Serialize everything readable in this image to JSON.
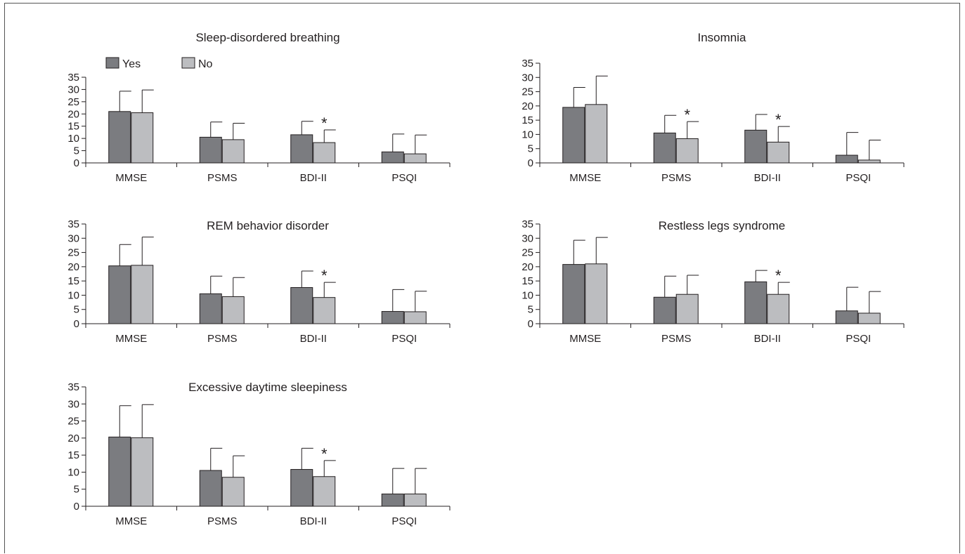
{
  "colors": {
    "yes": "#7b7c80",
    "no": "#bcbdc0",
    "ink": "#231f20"
  },
  "legend": {
    "yes_label": "Yes",
    "no_label": "No"
  },
  "chart_data": [
    {
      "type": "bar",
      "title": "Sleep-disordered breathing",
      "categories": [
        "MMSE",
        "PSMS",
        "BDI-II",
        "PSQI"
      ],
      "ylim": [
        0,
        35
      ],
      "yticks": [
        0,
        5,
        10,
        15,
        20,
        25,
        30,
        35
      ],
      "legend": true,
      "series": [
        {
          "name": "Yes",
          "values": [
            21,
            10.5,
            11.5,
            4.5
          ],
          "error": [
            8.3,
            6.2,
            5.5,
            7.3
          ]
        },
        {
          "name": "No",
          "values": [
            20.5,
            9.5,
            8.3,
            3.7
          ],
          "error": [
            9.3,
            6.7,
            5.2,
            7.7
          ]
        }
      ],
      "significant": [
        "BDI-II"
      ],
      "marker": "*"
    },
    {
      "type": "bar",
      "title": "Insomnia",
      "categories": [
        "MMSE",
        "PSMS",
        "BDI-II",
        "PSQI"
      ],
      "ylim": [
        0,
        35
      ],
      "yticks": [
        0,
        5,
        10,
        15,
        20,
        25,
        30,
        35
      ],
      "series": [
        {
          "name": "Yes",
          "values": [
            19.5,
            10.5,
            11.5,
            2.7
          ],
          "error": [
            7,
            6.2,
            5.5,
            8
          ]
        },
        {
          "name": "No",
          "values": [
            20.5,
            8.5,
            7.3,
            1
          ],
          "error": [
            10,
            6,
            5.5,
            7
          ]
        }
      ],
      "significant": [
        "PSMS",
        "BDI-II"
      ],
      "marker": "*"
    },
    {
      "type": "bar",
      "title": "REM behavior disorder",
      "categories": [
        "MMSE",
        "PSMS",
        "BDI-II",
        "PSQI"
      ],
      "ylim": [
        0,
        35
      ],
      "yticks": [
        0,
        5,
        10,
        15,
        20,
        25,
        30,
        35
      ],
      "series": [
        {
          "name": "Yes",
          "values": [
            20.3,
            10.5,
            12.7,
            4.3
          ],
          "error": [
            7.5,
            6.2,
            5.8,
            7.7
          ]
        },
        {
          "name": "No",
          "values": [
            20.5,
            9.5,
            9.2,
            4.2
          ],
          "error": [
            9.9,
            6.7,
            5.3,
            7.2
          ]
        }
      ],
      "significant": [
        "BDI-II"
      ],
      "marker": "*"
    },
    {
      "type": "bar",
      "title": "Restless legs syndrome",
      "categories": [
        "MMSE",
        "PSMS",
        "BDI-II",
        "PSQI"
      ],
      "ylim": [
        0,
        35
      ],
      "yticks": [
        0,
        5,
        10,
        15,
        20,
        25,
        30,
        35
      ],
      "series": [
        {
          "name": "Yes",
          "values": [
            20.8,
            9.3,
            14.7,
            4.5
          ],
          "error": [
            8.5,
            7.4,
            4,
            8.3
          ]
        },
        {
          "name": "No",
          "values": [
            21,
            10.3,
            10.3,
            3.7
          ],
          "error": [
            9.3,
            6.7,
            4.2,
            7.6
          ]
        }
      ],
      "significant": [
        "BDI-II"
      ],
      "marker": "*"
    },
    {
      "type": "bar",
      "title": "Excessive daytime sleepiness",
      "categories": [
        "MMSE",
        "PSMS",
        "BDI-II",
        "PSQI"
      ],
      "ylim": [
        0,
        35
      ],
      "yticks": [
        0,
        5,
        10,
        15,
        20,
        25,
        30,
        35
      ],
      "series": [
        {
          "name": "Yes",
          "values": [
            20.3,
            10.5,
            10.8,
            3.6
          ],
          "error": [
            9.2,
            6.5,
            6.2,
            7.5
          ]
        },
        {
          "name": "No",
          "values": [
            20.1,
            8.5,
            8.7,
            3.6
          ],
          "error": [
            9.7,
            6.3,
            4.7,
            7.5
          ]
        }
      ],
      "significant": [
        "BDI-II"
      ],
      "marker": "*"
    }
  ]
}
